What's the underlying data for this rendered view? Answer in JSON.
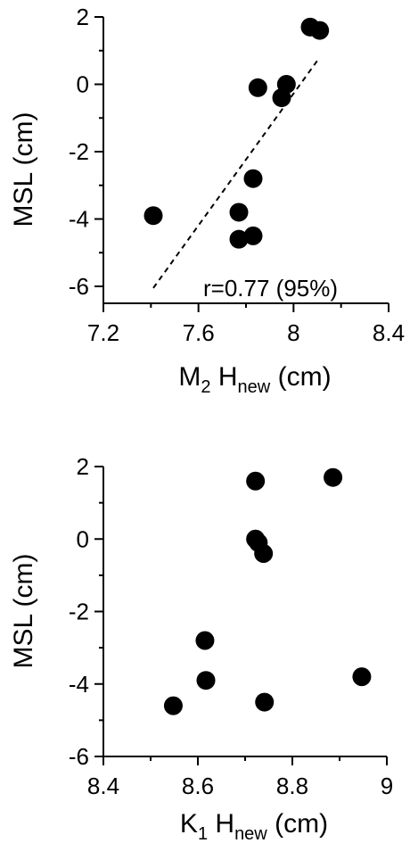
{
  "chart_data": [
    {
      "type": "scatter",
      "xlabel": "M₂ Hₙₑw (cm)",
      "xlabel_parts": {
        "main": "M",
        "sub": "2",
        "mid": " H",
        "sub2": "new",
        "tail": " (cm)"
      },
      "ylabel": "MSL (cm)",
      "xlim": [
        7.2,
        8.4
      ],
      "ylim": [
        -6.5,
        2
      ],
      "xticks": [
        7.2,
        7.6,
        8,
        8.4
      ],
      "xticklabels": [
        "7.2",
        "7.6",
        "8",
        "8.4"
      ],
      "xminor": [
        7.4,
        7.8,
        8.2
      ],
      "yticks": [
        -6,
        -4,
        -2,
        0,
        2
      ],
      "yticklabels": [
        "-6",
        "-4",
        "-2",
        "0",
        "2"
      ],
      "yminor": [
        -5,
        -3,
        -1,
        1
      ],
      "grid": false,
      "points": [
        {
          "x": 7.41,
          "y": -3.9
        },
        {
          "x": 7.77,
          "y": -3.8
        },
        {
          "x": 7.77,
          "y": -4.6
        },
        {
          "x": 7.83,
          "y": -4.5
        },
        {
          "x": 7.83,
          "y": -2.8
        },
        {
          "x": 7.85,
          "y": -0.1
        },
        {
          "x": 7.95,
          "y": -0.4
        },
        {
          "x": 7.97,
          "y": 0.0
        },
        {
          "x": 8.07,
          "y": 1.7
        },
        {
          "x": 8.11,
          "y": 1.6
        }
      ],
      "fit_line": {
        "style": "dashed",
        "x": [
          7.41,
          8.11
        ],
        "y": [
          -6.05,
          0.8
        ]
      },
      "annotation": "r=0.77 (95%)"
    },
    {
      "type": "scatter",
      "xlabel": "K₁ Hₙₑw (cm)",
      "xlabel_parts": {
        "main": "K",
        "sub": "1",
        "mid": " H",
        "sub2": "new",
        "tail": " (cm)"
      },
      "ylabel": "MSL (cm)",
      "xlim": [
        8.4,
        9.0
      ],
      "ylim": [
        -6,
        2
      ],
      "xticks": [
        8.4,
        8.6,
        8.8,
        9.0
      ],
      "xticklabels": [
        "8.4",
        "8.6",
        "8.8",
        "9"
      ],
      "xminor": [
        8.5,
        8.7,
        8.9
      ],
      "yticks": [
        -6,
        -4,
        -2,
        0,
        2
      ],
      "yticklabels": [
        "-6",
        "-4",
        "-2",
        "0",
        "2"
      ],
      "yminor": [
        -5,
        -3,
        -1,
        1
      ],
      "grid": false,
      "points": [
        {
          "x": 8.548,
          "y": -4.6
        },
        {
          "x": 8.615,
          "y": -2.8
        },
        {
          "x": 8.617,
          "y": -3.9
        },
        {
          "x": 8.722,
          "y": 1.6
        },
        {
          "x": 8.722,
          "y": 0.0
        },
        {
          "x": 8.728,
          "y": -0.1
        },
        {
          "x": 8.739,
          "y": -0.4
        },
        {
          "x": 8.741,
          "y": -4.5
        },
        {
          "x": 8.886,
          "y": 1.7
        },
        {
          "x": 8.947,
          "y": -3.8
        }
      ]
    }
  ]
}
